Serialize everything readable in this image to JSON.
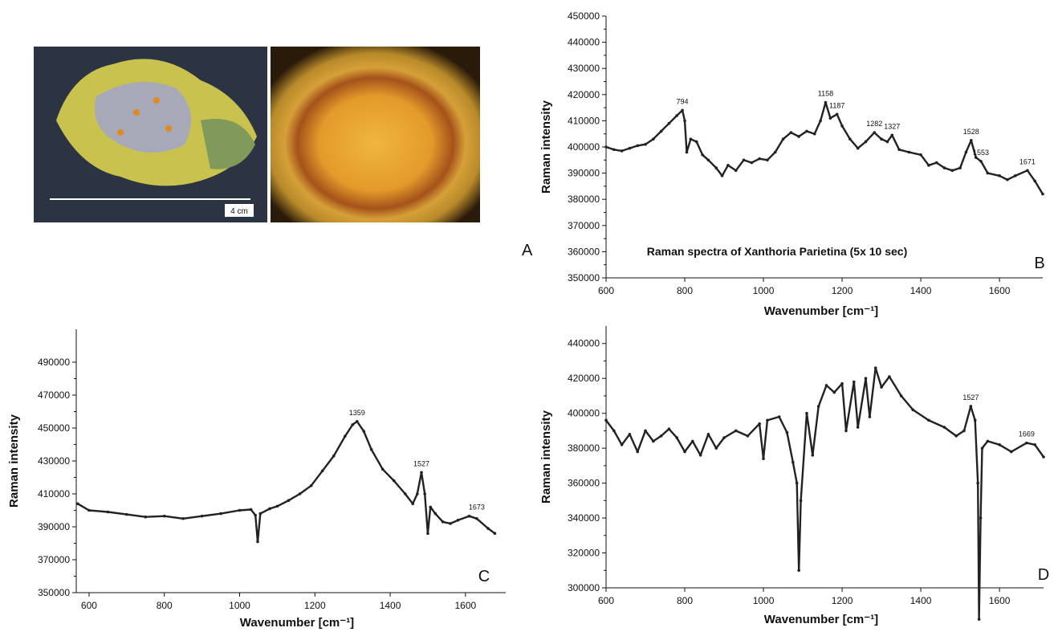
{
  "photos": {
    "scale_label": "4 cm",
    "panel_label": "A"
  },
  "chart_data": [
    {
      "type": "line",
      "title": "Raman spectra of Xanthoria Parietina (5x 10 sec)",
      "panel_label": "B",
      "x_label": "Wavenumber [cm⁻¹]",
      "y_label": "Raman intensity",
      "color": "#222222",
      "xlim": [
        600,
        1710
      ],
      "ylim": [
        350000,
        450000
      ],
      "xticks": [
        600,
        800,
        1000,
        1200,
        1400,
        1600
      ],
      "yticks": [
        350000,
        360000,
        370000,
        380000,
        390000,
        400000,
        410000,
        420000,
        430000,
        440000,
        450000
      ],
      "x": [
        600,
        620,
        640,
        660,
        680,
        700,
        720,
        740,
        760,
        780,
        794,
        800,
        805,
        815,
        830,
        845,
        860,
        880,
        895,
        910,
        930,
        950,
        970,
        990,
        1010,
        1030,
        1050,
        1070,
        1090,
        1110,
        1130,
        1145,
        1158,
        1170,
        1187,
        1200,
        1220,
        1240,
        1260,
        1282,
        1300,
        1315,
        1327,
        1345,
        1370,
        1400,
        1420,
        1440,
        1460,
        1480,
        1500,
        1515,
        1528,
        1540,
        1553,
        1570,
        1600,
        1620,
        1640,
        1671,
        1690,
        1710
      ],
      "values": [
        400000,
        399000,
        398500,
        399500,
        400500,
        401000,
        403000,
        406000,
        409000,
        412000,
        414000,
        410000,
        398000,
        403000,
        402000,
        397000,
        395000,
        392000,
        389000,
        393000,
        391000,
        395000,
        394000,
        395500,
        395000,
        398000,
        403000,
        405500,
        404000,
        406000,
        405000,
        410000,
        417000,
        411000,
        412500,
        408000,
        403000,
        399500,
        402000,
        405500,
        403000,
        402000,
        404500,
        399000,
        398000,
        397000,
        393000,
        394000,
        392000,
        391000,
        392000,
        398000,
        402500,
        396000,
        394500,
        390000,
        389000,
        387500,
        389000,
        391000,
        387000,
        382000
      ],
      "annotations": [
        {
          "text": "794",
          "x": 794,
          "y": 414000
        },
        {
          "text": "1158",
          "x": 1158,
          "y": 417000
        },
        {
          "text": "1187",
          "x": 1187,
          "y": 412500
        },
        {
          "text": "1282",
          "x": 1282,
          "y": 405500
        },
        {
          "text": "1327",
          "x": 1327,
          "y": 404500
        },
        {
          "text": "1528",
          "x": 1528,
          "y": 402500
        },
        {
          "text": "1553",
          "x": 1553,
          "y": 394500
        },
        {
          "text": "1671",
          "x": 1671,
          "y": 391000
        }
      ]
    },
    {
      "type": "line",
      "panel_label": "C",
      "x_label": "Wavenumber [cm⁻¹]",
      "y_label": "Raman intensity",
      "color": "#222222",
      "xlim": [
        566,
        1707
      ],
      "ylim": [
        350000,
        510000
      ],
      "xticks": [
        600,
        800,
        1000,
        1200,
        1400,
        1600
      ],
      "yticks": [
        350000,
        370000,
        390000,
        410000,
        430000,
        450000,
        470000,
        490000
      ],
      "x": [
        570,
        600,
        650,
        700,
        750,
        800,
        850,
        900,
        950,
        1000,
        1030,
        1042,
        1048,
        1055,
        1080,
        1100,
        1130,
        1160,
        1190,
        1220,
        1250,
        1280,
        1300,
        1312,
        1330,
        1350,
        1380,
        1410,
        1440,
        1460,
        1472,
        1483,
        1492,
        1500,
        1507,
        1520,
        1540,
        1560,
        1580,
        1610,
        1630,
        1660,
        1678
      ],
      "values": [
        404000,
        400000,
        399000,
        397500,
        396000,
        396500,
        395000,
        396500,
        398000,
        400000,
        400500,
        397000,
        381000,
        398000,
        401000,
        402500,
        406000,
        410000,
        415000,
        424000,
        433000,
        445000,
        452000,
        454000,
        448000,
        437000,
        425000,
        418000,
        410000,
        404000,
        410000,
        423000,
        410000,
        386000,
        402000,
        398000,
        393000,
        392000,
        394000,
        396500,
        395000,
        389000,
        386000
      ],
      "annotations": [
        {
          "text": "1359",
          "x": 1312,
          "y": 454000
        },
        {
          "text": "1527",
          "x": 1483,
          "y": 423000
        },
        {
          "text": "1673",
          "x": 1630,
          "y": 396500
        }
      ]
    },
    {
      "type": "line",
      "panel_label": "D",
      "x_label": "Wavenumber [cm⁻¹]",
      "y_label": "Raman intensity",
      "color": "#222222",
      "xlim": [
        600,
        1712
      ],
      "ylim": [
        300000,
        450000
      ],
      "xticks": [
        600,
        800,
        1000,
        1200,
        1400,
        1600
      ],
      "yticks": [
        300000,
        320000,
        340000,
        360000,
        380000,
        400000,
        420000,
        440000
      ],
      "x": [
        600,
        620,
        640,
        660,
        680,
        700,
        720,
        740,
        760,
        780,
        800,
        820,
        840,
        860,
        880,
        900,
        930,
        960,
        990,
        1000,
        1010,
        1040,
        1060,
        1075,
        1085,
        1090,
        1095,
        1110,
        1125,
        1140,
        1160,
        1180,
        1200,
        1210,
        1230,
        1240,
        1260,
        1270,
        1285,
        1300,
        1320,
        1350,
        1380,
        1420,
        1460,
        1490,
        1510,
        1527,
        1538,
        1545,
        1548,
        1552,
        1556,
        1570,
        1600,
        1630,
        1669,
        1690,
        1712
      ],
      "values": [
        396000,
        390000,
        382000,
        388000,
        378000,
        390000,
        384000,
        387000,
        391000,
        386000,
        378000,
        384000,
        376000,
        388000,
        380000,
        386000,
        390000,
        387000,
        394000,
        374000,
        396000,
        398000,
        389000,
        372000,
        360000,
        310000,
        350000,
        400000,
        376000,
        404000,
        416000,
        412000,
        417000,
        390000,
        418000,
        392000,
        420000,
        398000,
        426000,
        415000,
        421000,
        410000,
        402000,
        396000,
        392000,
        387000,
        390000,
        404000,
        396000,
        360000,
        282000,
        340000,
        380000,
        384000,
        382000,
        378000,
        383000,
        382000,
        375000
      ],
      "annotations": [
        {
          "text": "1527",
          "x": 1527,
          "y": 404000
        },
        {
          "text": "1669",
          "x": 1669,
          "y": 383000
        }
      ]
    }
  ]
}
